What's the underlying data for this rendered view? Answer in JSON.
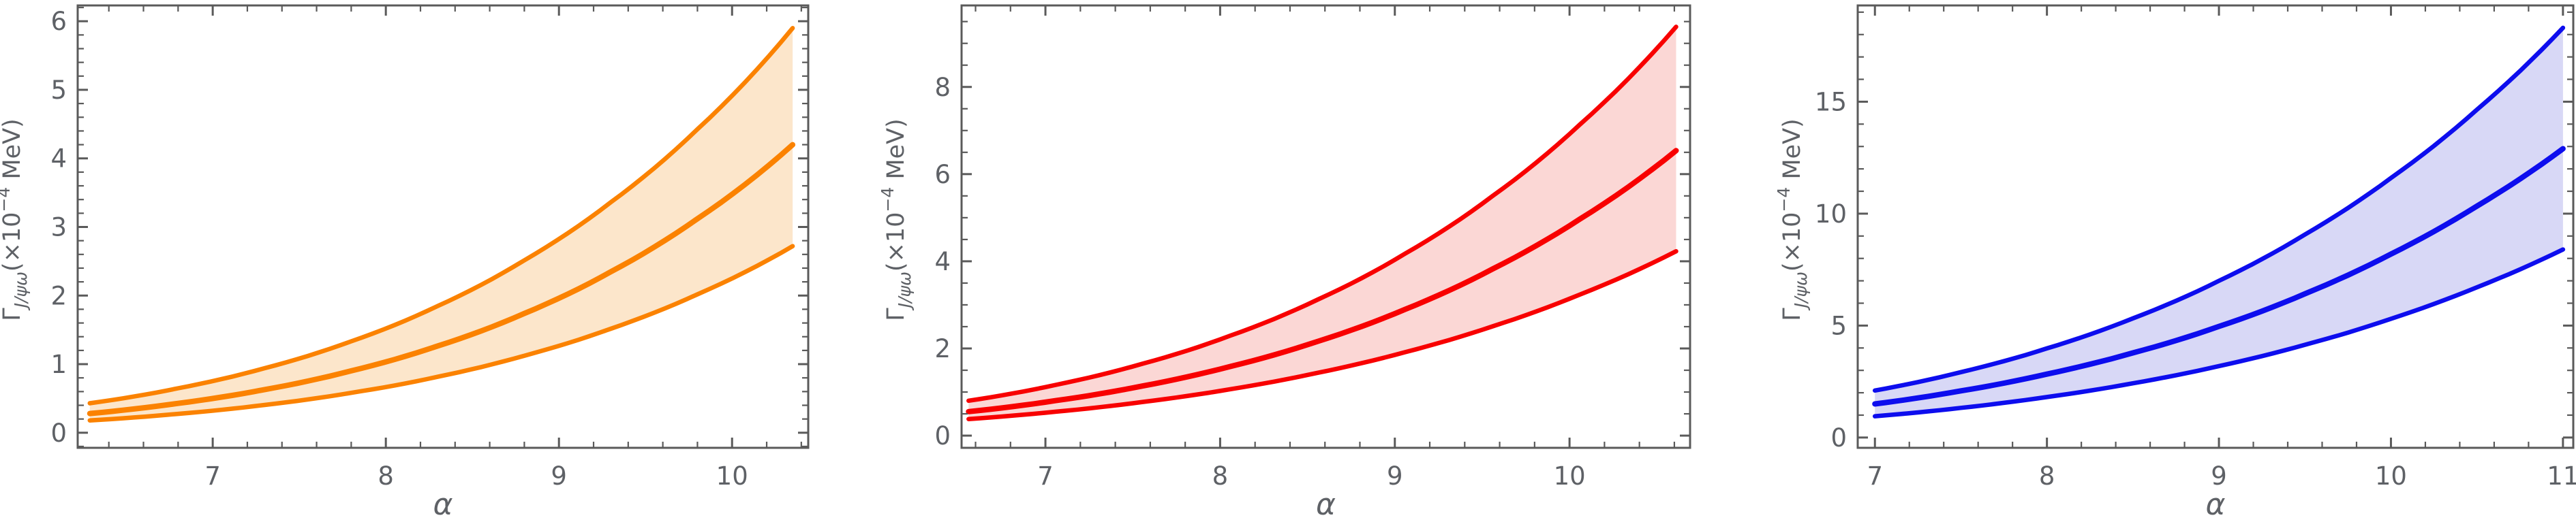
{
  "figure": {
    "background": "#ffffff",
    "frame_color": "#5a5a5a",
    "label_color": "#5e6166",
    "xlabel": "α",
    "ylabel_parts": [
      {
        "t": "Γ",
        "style": "normal",
        "italic": false
      },
      {
        "t": "J/ψω",
        "style": "sub",
        "italic": true
      },
      {
        "t": "(×10",
        "style": "normal",
        "italic": false
      },
      {
        "t": "−4",
        "style": "sup",
        "italic": false
      },
      {
        "t": " MeV)",
        "style": "normal",
        "italic": false
      }
    ]
  },
  "chart_data": [
    {
      "type": "area",
      "name": "orange-panel",
      "title": "",
      "xlabel": "α",
      "ylabel": "Γ_J/ψω (×10^−4 MeV)",
      "line_color": "#fb8200",
      "band_color": "#fce6cb",
      "x_range_frame": [
        6.22,
        10.44
      ],
      "y_range_frame": [
        -0.22,
        6.23
      ],
      "x_ticks": [
        7,
        8,
        9,
        10
      ],
      "y_ticks": [
        0,
        1,
        2,
        3,
        4,
        5,
        6
      ],
      "x_minor_step": 0.2,
      "y_minor_step": 0.2,
      "grid": false,
      "legend": "none",
      "x": [
        6.29,
        6.8,
        7.3,
        7.8,
        8.3,
        8.8,
        9.3,
        9.8,
        10.35
      ],
      "series": [
        {
          "name": "upper",
          "values": [
            0.43,
            0.648,
            0.941,
            1.333,
            1.848,
            2.514,
            3.361,
            4.425,
            5.9
          ]
        },
        {
          "name": "central",
          "values": [
            0.28,
            0.428,
            0.629,
            0.902,
            1.265,
            1.739,
            2.347,
            3.12,
            4.2
          ]
        },
        {
          "name": "lower",
          "values": [
            0.18,
            0.275,
            0.405,
            0.582,
            0.816,
            1.123,
            1.517,
            2.018,
            2.72
          ]
        }
      ]
    },
    {
      "type": "area",
      "name": "red-panel",
      "title": "",
      "xlabel": "α",
      "ylabel": "Γ_J/ψω (×10^−4 MeV)",
      "line_color": "#f80000",
      "band_color": "#fbd7d5",
      "x_range_frame": [
        6.52,
        10.69
      ],
      "y_range_frame": [
        -0.28,
        9.87
      ],
      "x_ticks": [
        7,
        8,
        9,
        10
      ],
      "y_ticks": [
        0,
        2,
        4,
        6,
        8
      ],
      "x_minor_step": 0.2,
      "y_minor_step": 0.5,
      "grid": false,
      "legend": "none",
      "x": [
        6.56,
        7.06,
        7.56,
        8.06,
        8.56,
        9.06,
        9.56,
        10.06,
        10.61
      ],
      "series": [
        {
          "name": "upper",
          "values": [
            0.8,
            1.165,
            1.654,
            2.296,
            3.124,
            4.178,
            5.499,
            7.14,
            9.38
          ]
        },
        {
          "name": "central",
          "values": [
            0.55,
            0.803,
            1.142,
            1.588,
            2.164,
            2.899,
            3.823,
            4.97,
            6.54
          ]
        },
        {
          "name": "lower",
          "values": [
            0.38,
            0.549,
            0.774,
            1.066,
            1.442,
            1.916,
            2.508,
            3.238,
            4.23
          ]
        }
      ]
    },
    {
      "type": "area",
      "name": "blue-panel",
      "title": "",
      "xlabel": "α",
      "ylabel": "Γ_J/ψω (×10^−4 MeV)",
      "line_color": "#0d0dee",
      "band_color": "#d8d8f6",
      "x_range_frame": [
        6.9,
        11.06
      ],
      "y_range_frame": [
        -0.46,
        19.3
      ],
      "x_ticks": [
        7,
        8,
        9,
        10,
        11
      ],
      "y_ticks": [
        0,
        5,
        10,
        15
      ],
      "x_minor_step": 0.2,
      "y_minor_step": 1,
      "grid": false,
      "legend": "none",
      "x": [
        7,
        7.5,
        8,
        8.5,
        9,
        9.5,
        10,
        10.5,
        11
      ],
      "series": [
        {
          "name": "upper",
          "values": [
            2.1,
            2.922,
            3.981,
            5.323,
            6.999,
            9.068,
            11.593,
            14.645,
            18.3
          ]
        },
        {
          "name": "central",
          "values": [
            1.5,
            2.083,
            2.833,
            3.78,
            4.963,
            6.42,
            8.195,
            10.338,
            12.9
          ]
        },
        {
          "name": "lower",
          "values": [
            0.95,
            1.325,
            1.809,
            2.423,
            3.192,
            4.142,
            5.305,
            6.712,
            8.4
          ]
        }
      ]
    }
  ]
}
